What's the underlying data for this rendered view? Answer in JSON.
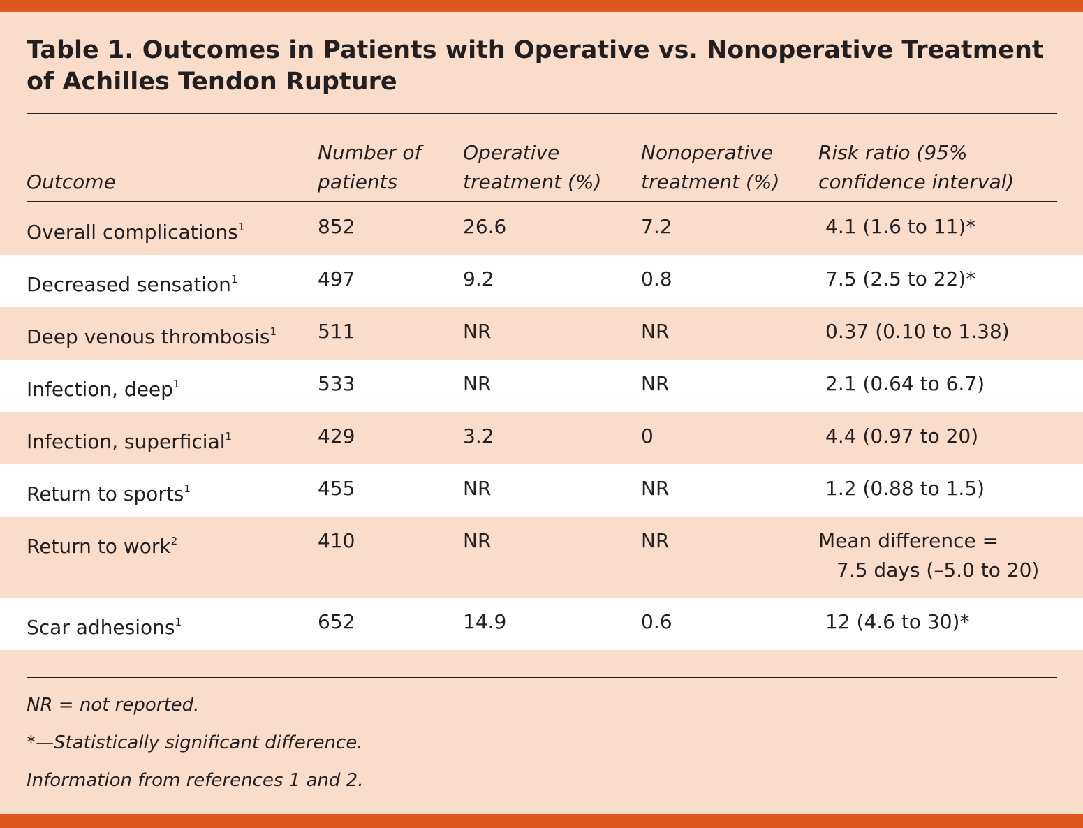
{
  "title": [
    "Table 1. Outcomes in Patients with Operative vs. Nonoperative Treatment",
    "of Achilles Tendon Rupture"
  ],
  "table": {
    "header": [
      [
        "Outcome"
      ],
      [
        "Number of",
        "patients"
      ],
      [
        "Operative",
        "treatment (%)"
      ],
      [
        "Nonoperative",
        "treatment (%)"
      ],
      [
        "Risk ratio (95%",
        "confidence interval)"
      ]
    ],
    "rows": [
      {
        "outcome": "Overall complications",
        "ref": "1",
        "patients": "852",
        "operative": "26.6",
        "nonoperative": "7.2",
        "risk_ratio": [
          "4.1 (1.6 to 11)*"
        ]
      },
      {
        "outcome": "Decreased sensation",
        "ref": "1",
        "patients": "497",
        "operative": "9.2",
        "nonoperative": "0.8",
        "risk_ratio": [
          "7.5 (2.5 to 22)*"
        ]
      },
      {
        "outcome": "Deep venous thrombosis",
        "ref": "1",
        "patients": "511",
        "operative": "NR",
        "nonoperative": "NR",
        "risk_ratio": [
          "0.37 (0.10 to 1.38)"
        ]
      },
      {
        "outcome": "Infection, deep",
        "ref": "1",
        "patients": "533",
        "operative": "NR",
        "nonoperative": "NR",
        "risk_ratio": [
          "2.1 (0.64 to 6.7)"
        ]
      },
      {
        "outcome": "Infection, superficial",
        "ref": "1",
        "patients": "429",
        "operative": "3.2",
        "nonoperative": "0",
        "risk_ratio": [
          "4.4 (0.97 to 20)"
        ]
      },
      {
        "outcome": "Return to sports",
        "ref": "1",
        "patients": "455",
        "operative": "NR",
        "nonoperative": "NR",
        "risk_ratio": [
          "1.2 (0.88 to 1.5)"
        ]
      },
      {
        "outcome": "Return to work",
        "ref": "2",
        "patients": "410",
        "operative": "NR",
        "nonoperative": "NR",
        "risk_ratio": [
          "Mean difference =",
          "7.5 days (–5.0 to 20)"
        ]
      },
      {
        "outcome": "Scar adhesions",
        "ref": "1",
        "patients": "652",
        "operative": "14.9",
        "nonoperative": "0.6",
        "risk_ratio": [
          "12 (4.6 to 30)*"
        ]
      }
    ]
  },
  "footnotes": [
    "NR = not reported.",
    "*—Statistically significant difference.",
    "Information from references 1 and 2."
  ]
}
